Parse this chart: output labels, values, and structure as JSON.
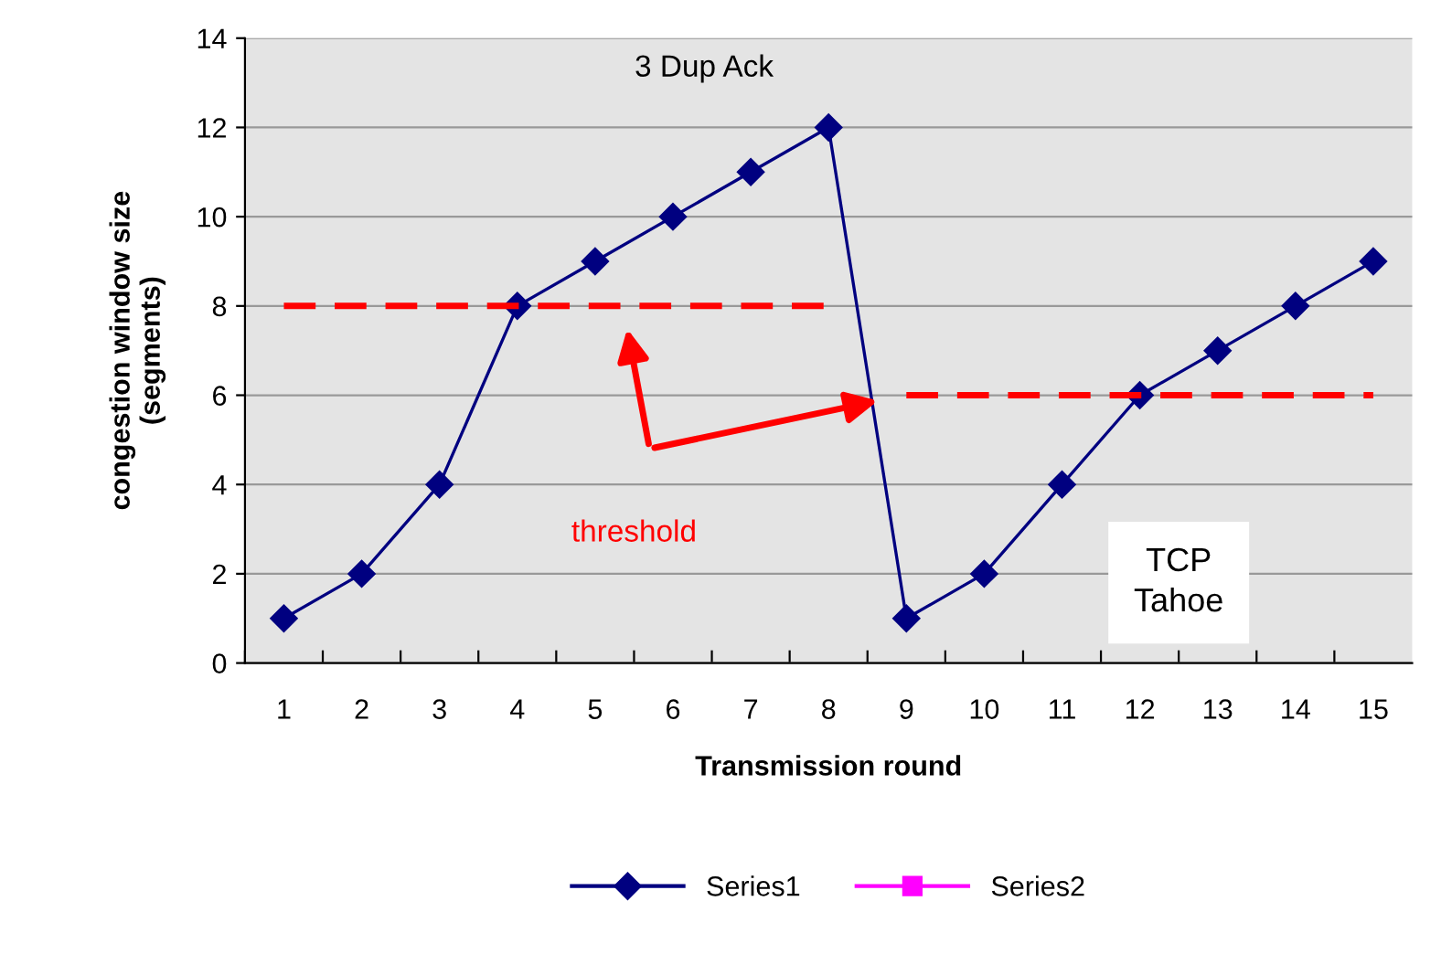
{
  "chart_data": {
    "type": "line",
    "xlabel": "Transmission round",
    "ylabel": "congestion window size\n(segments)",
    "categories": [
      "1",
      "2",
      "3",
      "4",
      "5",
      "6",
      "7",
      "8",
      "9",
      "10",
      "11",
      "12",
      "13",
      "14",
      "15"
    ],
    "series": [
      {
        "name": "Series1",
        "color": "#000080",
        "marker": "diamond",
        "values": [
          1,
          2,
          4,
          8,
          9,
          10,
          11,
          12,
          1,
          2,
          4,
          6,
          7,
          8,
          9
        ]
      },
      {
        "name": "Series2",
        "color": "#ff00ff",
        "marker": "square",
        "values": [
          null,
          null,
          null,
          null,
          null,
          null,
          null,
          null,
          null,
          null,
          null,
          null,
          null,
          null,
          null
        ]
      },
      {
        "color": "#ff0000",
        "line_style": "dashed",
        "marker": "none",
        "values": [
          8,
          8,
          8,
          8,
          8,
          8,
          8,
          8,
          null,
          null,
          null,
          null,
          null,
          null,
          null
        ]
      },
      {
        "color": "#ff0000",
        "line_style": "dashed",
        "marker": "none",
        "values": [
          null,
          null,
          null,
          null,
          null,
          null,
          null,
          null,
          6,
          6,
          6,
          6,
          6,
          6,
          6
        ]
      }
    ],
    "annotations": [
      {
        "text": "3 Dup Ack",
        "x": "8",
        "y": 12
      },
      "threshold",
      "TCP\nTahoe"
    ],
    "ylim": [
      0,
      14
    ],
    "yticks": [
      0,
      2,
      4,
      6,
      8,
      10,
      12,
      14
    ],
    "grid": "y",
    "legend": "bottom"
  }
}
